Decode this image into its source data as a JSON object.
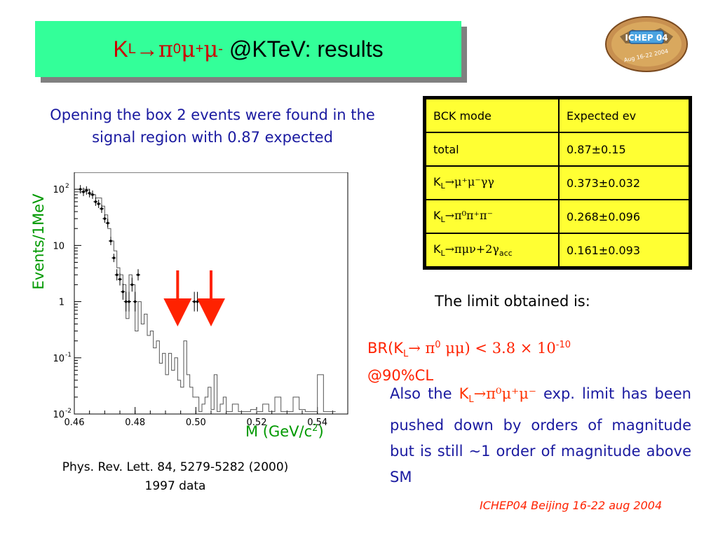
{
  "title": {
    "k": "K",
    "k_sub": "L",
    "arrow": "→",
    "pi": "π",
    "pi_sup": "0",
    "mu1": "μ",
    "mu1_sup": "+",
    "mu2": "μ",
    "mu2_sup": "-",
    "rest": " @KTeV: results"
  },
  "logo": {
    "text": "ICHEP 04",
    "subtext": "Aug 16-22 2004",
    "icon": "ichep04-logo-icon"
  },
  "opening_text": "Opening the box 2 events were found in the signal region with 0.87 expected",
  "table": {
    "header": [
      "BCK mode",
      "Expected ev"
    ],
    "rows": [
      {
        "mode": "total",
        "value": "0.87±0.15"
      },
      {
        "mode_k": "K",
        "mode_sub": "L",
        "mode_rest": "→μ⁺μ⁻γγ",
        "value": "0.373±0.032"
      },
      {
        "mode_k": "K",
        "mode_sub": "L",
        "mode_rest": "→π⁰π⁺π⁻",
        "value": "0.268±0.096"
      },
      {
        "mode_k": "K",
        "mode_sub": "L",
        "mode_rest": "→πμν+2γ",
        "mode_rest_sub": "acc",
        "value": "0.161±0.093"
      }
    ]
  },
  "limit_label": "The limit obtained is:",
  "br": {
    "prefix": "BR(K",
    "sub": "L",
    "mid": "→ π",
    "sup0": "0",
    "mumu": " μμ) < 3.8 × 10",
    "exp": "-10",
    "cl": "@90%CL"
  },
  "also": {
    "pre": "Also the ",
    "k": "K",
    "k_sub": "L",
    "decay": "→π⁰μ⁺μ⁻",
    "post": " exp. limit has been pushed down by orders of magnitude but is still ~1 order of magnitude above SM"
  },
  "reference": {
    "line1": "Phys. Rev. Lett. 84, 5279-5282 (2000)",
    "line2": "1997 data"
  },
  "footer": "ICHEP04 Beijing 16-22 aug 2004",
  "colors": {
    "title_bg": "#33ff99",
    "table_bg": "#ffff33",
    "accent_red": "#ff2200",
    "text_blue": "#1a1aa0",
    "axis_green": "#009900"
  },
  "chart_data": {
    "type": "scatter",
    "title": "",
    "xlabel": "M (GeV/c²)",
    "xlabel_main": "M (GeV/c",
    "xlabel_sup": "2",
    "xlabel_end": ")",
    "ylabel": "Events/1MeV",
    "ylog": true,
    "xlim": [
      0.46,
      0.55
    ],
    "ylim": [
      0.01,
      200
    ],
    "x_ticks": [
      "0.46",
      "0.48",
      "0.50",
      "0.52",
      "0.54"
    ],
    "y_ticks": [
      "10",
      "10",
      "1",
      "10",
      "10"
    ],
    "y_tick_exponents": [
      "2",
      "",
      "",
      "-1",
      "-2"
    ],
    "series": [
      {
        "points": [
          [
            0.462,
            100
          ],
          [
            0.463,
            90
          ],
          [
            0.464,
            95
          ],
          [
            0.465,
            85
          ],
          [
            0.466,
            80
          ],
          [
            0.467,
            60
          ],
          [
            0.468,
            55
          ],
          [
            0.469,
            45
          ],
          [
            0.47,
            30
          ],
          [
            0.471,
            25
          ],
          [
            0.472,
            12
          ],
          [
            0.473,
            6
          ],
          [
            0.474,
            3
          ],
          [
            0.475,
            2.5
          ],
          [
            0.476,
            1.5
          ],
          [
            0.477,
            1
          ],
          [
            0.478,
            1
          ],
          [
            0.479,
            2
          ],
          [
            0.48,
            1
          ],
          [
            0.481,
            3
          ],
          [
            0.4995,
            1
          ],
          [
            0.5005,
            1
          ]
        ]
      }
    ],
    "arrows_x": [
      0.494,
      0.505
    ]
  }
}
